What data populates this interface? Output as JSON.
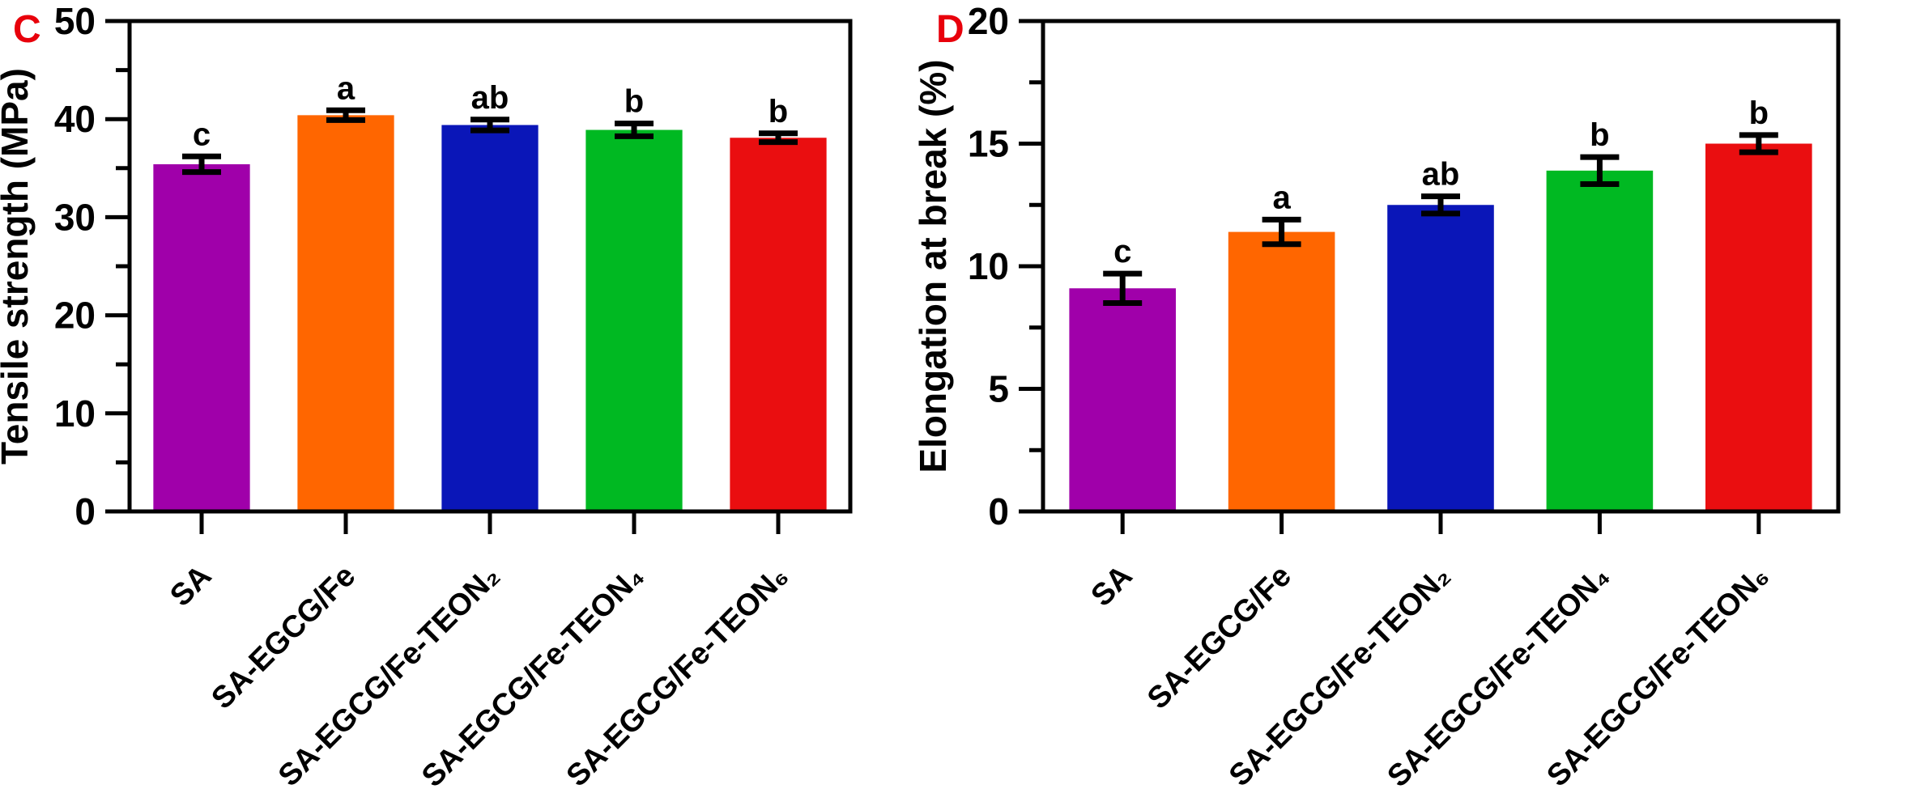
{
  "figure": {
    "background_color": "#ffffff",
    "axis_color": "#000000",
    "text_color": "#000000"
  },
  "chart_data": [
    {
      "type": "bar",
      "panel_label": "C",
      "panel_label_color": "#e8000b",
      "title": "",
      "xlabel": "",
      "ylabel": "Tensile strength (MPa)",
      "ylim": [
        0,
        50
      ],
      "ytick_labels": [
        "0",
        "10",
        "20",
        "30",
        "40",
        "50"
      ],
      "ytick_values": [
        0,
        10,
        20,
        30,
        40,
        50
      ],
      "minor_tick_values": [
        5,
        15,
        25,
        35,
        45
      ],
      "grid": "off",
      "legend": "none",
      "categories": [
        "SA",
        "SA-EGCG/Fe",
        "SA-EGCG/Fe-TEON₂",
        "SA-EGCG/Fe-TEON₄",
        "SA-EGCG/Fe-TEON₆"
      ],
      "values": [
        35.4,
        40.4,
        39.4,
        38.9,
        38.1
      ],
      "errors": [
        0.8,
        0.5,
        0.55,
        0.65,
        0.45
      ],
      "sig_letters": [
        "c",
        "a",
        "ab",
        "b",
        "b"
      ],
      "bar_colors": [
        "#a000aa",
        "#ff6600",
        "#0a16b8",
        "#00b922",
        "#ea0e10"
      ]
    },
    {
      "type": "bar",
      "panel_label": "D",
      "panel_label_color": "#e8000b",
      "title": "",
      "xlabel": "",
      "ylabel": "Elongation at break (%)",
      "ylim": [
        0,
        20
      ],
      "ytick_labels": [
        "0",
        "5",
        "10",
        "15",
        "20"
      ],
      "ytick_values": [
        0,
        5,
        10,
        15,
        20
      ],
      "minor_tick_values": [
        2.5,
        7.5,
        12.5,
        17.5
      ],
      "grid": "off",
      "legend": "none",
      "categories": [
        "SA",
        "SA-EGCG/Fe",
        "SA-EGCG/Fe-TEON₂",
        "SA-EGCG/Fe-TEON₄",
        "SA-EGCG/Fe-TEON₆"
      ],
      "values": [
        9.1,
        11.4,
        12.5,
        13.9,
        15.0
      ],
      "errors": [
        0.6,
        0.5,
        0.35,
        0.55,
        0.35
      ],
      "sig_letters": [
        "c",
        "a",
        "ab",
        "b",
        "b"
      ],
      "bar_colors": [
        "#a000aa",
        "#ff6600",
        "#0a16b8",
        "#00b922",
        "#ea0e10"
      ]
    }
  ]
}
